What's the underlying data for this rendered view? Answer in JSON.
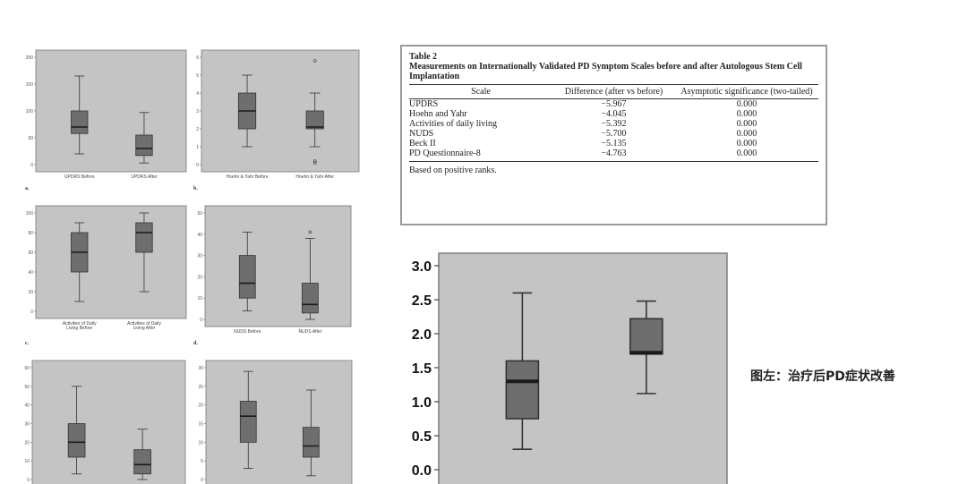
{
  "colors": {
    "panel_bg": "#c4c4c4",
    "box_fill": "#6e6e6e",
    "median": "#1a1a1a",
    "whisker": "#333333"
  },
  "table": {
    "title": "Table 2",
    "caption": "Measurements on Internationally Validated PD Symptom Scales before and after Autologous Stem Cell Implantation",
    "headers": [
      "Scale",
      "Difference (after vs before)",
      "Asymptotic significance (two-tailed)"
    ],
    "rows": [
      [
        "UPDRS",
        "−5.967",
        "0.000"
      ],
      [
        "Hoehn and Yahr",
        "−4.045",
        "0.000"
      ],
      [
        "Activities of daily living",
        "−5.392",
        "0.000"
      ],
      [
        "NUDS",
        "−5.700",
        "0.000"
      ],
      [
        "Beck II",
        "−5.135",
        "0.000"
      ],
      [
        "PD Questionnaire-8",
        "−4.763",
        "0.000"
      ]
    ],
    "footnote": "Based on positive ranks."
  },
  "caption_cn": "图左：治疗后PD症状改善",
  "chart_data": [
    {
      "type": "box",
      "panel_label": "a.",
      "ylim": [
        0,
        200
      ],
      "yticks": [
        "0",
        "50",
        "100",
        "150",
        "200"
      ],
      "categories": [
        "UPDRS Before",
        "UPDRS After"
      ],
      "boxes": [
        {
          "min": 20,
          "q1": 58,
          "median": 70,
          "q3": 100,
          "max": 165
        },
        {
          "min": 3,
          "q1": 17,
          "median": 30,
          "q3": 55,
          "max": 97
        }
      ]
    },
    {
      "type": "box",
      "panel_label": "b.",
      "ylim": [
        0,
        6
      ],
      "yticks": [
        "0",
        "1",
        "2",
        "3",
        "4",
        "5",
        "6"
      ],
      "categories": [
        "Hoehn & Yahr Before",
        "Hoehn & Yahr After"
      ],
      "boxes": [
        {
          "min": 1,
          "q1": 2,
          "median": 3,
          "q3": 4,
          "max": 5
        },
        {
          "min": 1,
          "q1": 2,
          "median": 2.1,
          "q3": 3,
          "max": 4,
          "outliers_low": [
            0.1,
            0.2
          ],
          "outliers_high": [
            5.8
          ]
        }
      ]
    },
    {
      "type": "box",
      "panel_label": "c.",
      "ylim": [
        0,
        100
      ],
      "yticks": [
        "0",
        "20",
        "40",
        "60",
        "80",
        "100"
      ],
      "categories": [
        "Activities of Daily Living Before",
        "Activities of Daily Living After"
      ],
      "boxes": [
        {
          "min": 10,
          "q1": 40,
          "median": 60,
          "q3": 80,
          "max": 90
        },
        {
          "min": 20,
          "q1": 60,
          "median": 80,
          "q3": 90,
          "max": 100
        }
      ]
    },
    {
      "type": "box",
      "panel_label": "d.",
      "ylim": [
        0,
        50
      ],
      "yticks": [
        "0",
        "10",
        "20",
        "30",
        "40",
        "50"
      ],
      "categories": [
        "NUDS Before",
        "NUDS After"
      ],
      "boxes": [
        {
          "min": 4,
          "q1": 10,
          "median": 17,
          "q3": 30,
          "max": 41
        },
        {
          "min": 0,
          "q1": 3,
          "median": 7,
          "q3": 17,
          "max": 38,
          "outliers_high": [
            41
          ]
        }
      ]
    },
    {
      "type": "box",
      "panel_label": "",
      "ylim": [
        0,
        60
      ],
      "yticks": [
        "0",
        "10",
        "20",
        "30",
        "40",
        "50",
        "60"
      ],
      "categories": [
        "",
        ""
      ],
      "boxes": [
        {
          "min": 3,
          "q1": 12,
          "median": 20,
          "q3": 30,
          "max": 50
        },
        {
          "min": 0,
          "q1": 3,
          "median": 8,
          "q3": 16,
          "max": 27
        }
      ]
    },
    {
      "type": "box",
      "panel_label": "",
      "ylim": [
        0,
        30
      ],
      "yticks": [
        "0",
        "5",
        "10",
        "15",
        "20",
        "25",
        "30"
      ],
      "categories": [
        "",
        ""
      ],
      "boxes": [
        {
          "min": 3,
          "q1": 10,
          "median": 17,
          "q3": 21,
          "max": 29
        },
        {
          "min": 1,
          "q1": 6,
          "median": 9,
          "q3": 14,
          "max": 24
        }
      ]
    },
    {
      "type": "box",
      "panel_label": "",
      "ylim": [
        0,
        3
      ],
      "yticks": [
        "0.0",
        "0.5",
        "1.0",
        "1.5",
        "2.0",
        "2.5",
        "3.0"
      ],
      "categories": [
        "",
        ""
      ],
      "boxes": [
        {
          "min": 0.3,
          "q1": 0.75,
          "median": 1.3,
          "q3": 1.6,
          "max": 2.6
        },
        {
          "min": 1.12,
          "q1": 1.7,
          "median": 1.72,
          "q3": 2.22,
          "max": 2.48
        }
      ]
    }
  ]
}
